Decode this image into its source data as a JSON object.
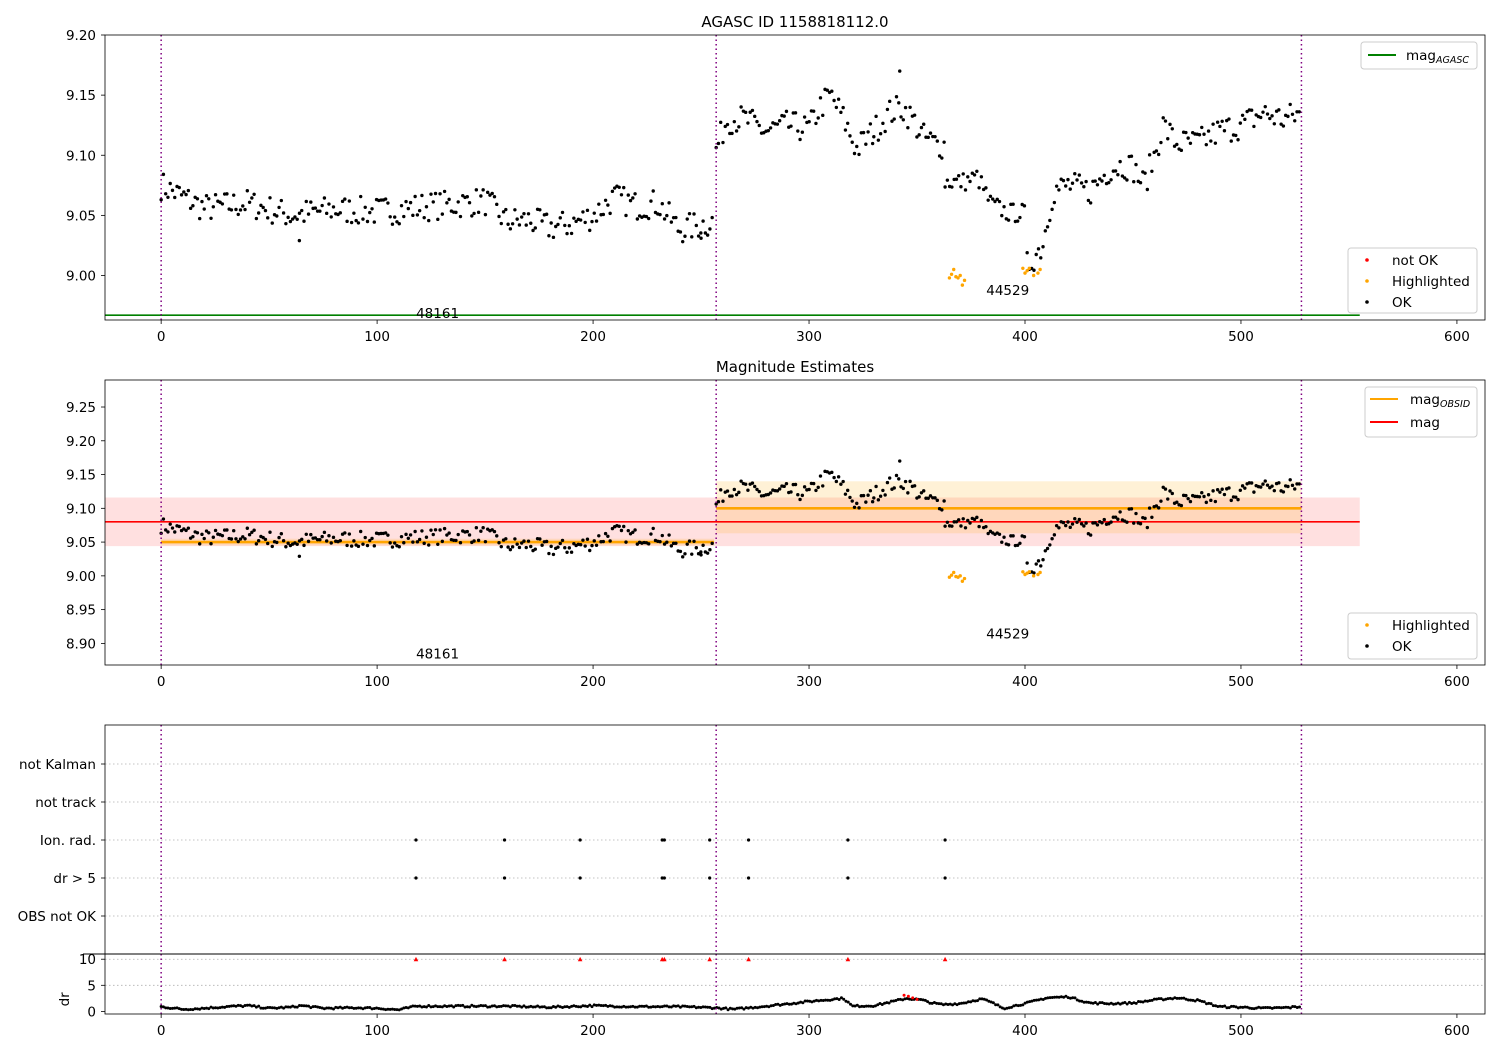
{
  "chart_data": [
    {
      "type": "scatter",
      "title": "AGASC ID 1158818112.0",
      "xlim": [
        -26,
        613
      ],
      "ylim": [
        8.963,
        9.2
      ],
      "x_ticks": [
        "0",
        "100",
        "200",
        "300",
        "400",
        "500",
        "600"
      ],
      "y_ticks": [
        "9.00",
        "9.05",
        "9.10",
        "9.15",
        "9.20"
      ],
      "obs_boundaries": [
        0,
        257,
        528
      ],
      "obs_labels": [
        {
          "text": "48161",
          "x": 128,
          "y": 8.969
        },
        {
          "text": "44529",
          "x": 392,
          "y": 8.988
        }
      ],
      "mag_agasc": 8.967,
      "mag_agasc_xrange": [
        -26,
        555
      ],
      "legend": {
        "upper": [
          {
            "label": "mag",
            "sub": "AGASC",
            "color": "#008000"
          }
        ],
        "lower": [
          {
            "label": "not OK",
            "color": "#ff0000"
          },
          {
            "label": "Highlighted",
            "color": "#ffa500"
          },
          {
            "label": "OK",
            "color": "#000000"
          }
        ]
      },
      "highlighted_points": [
        [
          365,
          8.998
        ],
        [
          366,
          9.001
        ],
        [
          367,
          9.005
        ],
        [
          368,
          8.999
        ],
        [
          369,
          8.998
        ],
        [
          370,
          9.0
        ],
        [
          371,
          8.992
        ],
        [
          372,
          8.996
        ],
        [
          399,
          9.006
        ],
        [
          400,
          9.002
        ],
        [
          401,
          9.004
        ],
        [
          402,
          9.006
        ],
        [
          404,
          9.0
        ],
        [
          406,
          9.002
        ],
        [
          407,
          9.005
        ]
      ],
      "ok_segments": [
        {
          "x0": 0,
          "x1": 256,
          "keys": [
            [
              0,
              9.075
            ],
            [
              20,
              9.056
            ],
            [
              40,
              9.06
            ],
            [
              60,
              9.05
            ],
            [
              80,
              9.055
            ],
            [
              100,
              9.053
            ],
            [
              120,
              9.057
            ],
            [
              140,
              9.06
            ],
            [
              150,
              9.062
            ],
            [
              160,
              9.045
            ],
            [
              170,
              9.046
            ],
            [
              180,
              9.04
            ],
            [
              190,
              9.043
            ],
            [
              200,
              9.05
            ],
            [
              210,
              9.065
            ],
            [
              220,
              9.058
            ],
            [
              230,
              9.06
            ],
            [
              240,
              9.038
            ],
            [
              256,
              9.045
            ]
          ],
          "jitter": 0.012
        },
        {
          "x0": 257,
          "x1": 330,
          "keys": [
            [
              257,
              9.105
            ],
            [
              262,
              9.13
            ],
            [
              270,
              9.13
            ],
            [
              280,
              9.12
            ],
            [
              290,
              9.125
            ],
            [
              300,
              9.122
            ],
            [
              305,
              9.14
            ],
            [
              310,
              9.15
            ],
            [
              316,
              9.13
            ],
            [
              322,
              9.105
            ],
            [
              330,
              9.12
            ]
          ],
          "jitter": 0.012
        },
        {
          "x0": 330,
          "x1": 363,
          "keys": [
            [
              330,
              9.12
            ],
            [
              337,
              9.135
            ],
            [
              343,
              9.14
            ],
            [
              348,
              9.13
            ],
            [
              353,
              9.115
            ],
            [
              358,
              9.11
            ],
            [
              363,
              9.108
            ]
          ],
          "jitter": 0.012
        },
        {
          "x0": 363,
          "x1": 400,
          "keys": [
            [
              363,
              9.078
            ],
            [
              372,
              9.078
            ],
            [
              378,
              9.082
            ],
            [
              384,
              9.06
            ],
            [
              392,
              9.052
            ],
            [
              400,
              9.052
            ]
          ],
          "jitter": 0.008
        },
        {
          "x0": 401,
          "x1": 528,
          "keys": [
            [
              401,
              9.008
            ],
            [
              408,
              9.025
            ],
            [
              413,
              9.07
            ],
            [
              420,
              9.075
            ],
            [
              430,
              9.07
            ],
            [
              440,
              9.09
            ],
            [
              446,
              9.092
            ],
            [
              450,
              9.09
            ],
            [
              455,
              9.075
            ],
            [
              460,
              9.1
            ],
            [
              464,
              9.125
            ],
            [
              470,
              9.11
            ],
            [
              480,
              9.11
            ],
            [
              490,
              9.12
            ],
            [
              500,
              9.125
            ],
            [
              510,
              9.135
            ],
            [
              520,
              9.13
            ],
            [
              528,
              9.135
            ]
          ],
          "jitter": 0.012
        }
      ],
      "extra_points": [
        [
          342,
          9.17
        ],
        [
          64,
          9.029
        ],
        [
          250,
          9.031
        ]
      ]
    },
    {
      "type": "scatter",
      "title": "Magnitude Estimates",
      "xlim": [
        -26,
        613
      ],
      "ylim": [
        8.868,
        9.29
      ],
      "x_ticks": [
        "0",
        "100",
        "200",
        "300",
        "400",
        "500",
        "600"
      ],
      "y_ticks": [
        "8.90",
        "8.95",
        "9.00",
        "9.05",
        "9.10",
        "9.15",
        "9.20",
        "9.25"
      ],
      "obs_boundaries": [
        0,
        257,
        528
      ],
      "obs_labels": [
        {
          "text": "48161",
          "x": 128,
          "y": 8.885
        },
        {
          "text": "44529",
          "x": 392,
          "y": 8.915
        }
      ],
      "mag": {
        "value": 9.08,
        "low": 9.044,
        "high": 9.116,
        "xrange": [
          -26,
          555
        ]
      },
      "mag_obsid": [
        {
          "x0": 0,
          "x1": 256,
          "value": 9.05,
          "low": 9.045,
          "high": 9.055
        },
        {
          "x0": 257,
          "x1": 528,
          "value": 9.1,
          "low": 9.063,
          "high": 9.14
        }
      ],
      "legend": {
        "upper": [
          {
            "label": "mag",
            "sub": "OBSID",
            "color": "#ffa500"
          },
          {
            "label": "mag",
            "sub": "",
            "color": "#ff0000"
          }
        ],
        "lower": [
          {
            "label": "Highlighted",
            "color": "#ffa500"
          },
          {
            "label": "OK",
            "color": "#000000"
          }
        ]
      }
    },
    {
      "type": "scatter",
      "title": "",
      "xlim": [
        -26,
        613
      ],
      "x_ticks": [
        "0",
        "100",
        "200",
        "300",
        "400",
        "500",
        "600"
      ],
      "flag_rows": [
        "not Kalman",
        "not track",
        "Ion. rad.",
        "dr > 5",
        "OBS not OK"
      ],
      "flag_points": {
        "Ion. rad.": [
          118,
          159,
          194,
          232,
          233,
          254,
          272,
          318,
          363
        ],
        "dr > 5": [
          118,
          159,
          194,
          232,
          233,
          254,
          272,
          318,
          363
        ]
      },
      "dr_axis": {
        "ylabel": "dr",
        "ylim": [
          -0.5,
          11
        ],
        "ticks": [
          "0",
          "5",
          "10"
        ]
      },
      "dr_capped_points": [
        118,
        159,
        194,
        232,
        233,
        254,
        272,
        318,
        363
      ],
      "dr_red_segment": [
        [
          344,
          3.1
        ],
        [
          346,
          2.9
        ],
        [
          348,
          2.6
        ],
        [
          350,
          2.3
        ]
      ],
      "dr_curve": [
        [
          0,
          0.9
        ],
        [
          10,
          0.4
        ],
        [
          20,
          0.6
        ],
        [
          30,
          0.9
        ],
        [
          40,
          1.1
        ],
        [
          50,
          0.6
        ],
        [
          60,
          0.8
        ],
        [
          65,
          1.1
        ],
        [
          75,
          0.6
        ],
        [
          90,
          0.7
        ],
        [
          100,
          0.6
        ],
        [
          110,
          0.3
        ],
        [
          118,
          1.0
        ],
        [
          140,
          1.0
        ],
        [
          160,
          1.0
        ],
        [
          180,
          0.8
        ],
        [
          200,
          1.1
        ],
        [
          220,
          0.9
        ],
        [
          240,
          0.9
        ],
        [
          256,
          0.7
        ],
        [
          265,
          0.4
        ],
        [
          280,
          1.0
        ],
        [
          300,
          1.9
        ],
        [
          310,
          2.3
        ],
        [
          316,
          2.5
        ],
        [
          320,
          1.0
        ],
        [
          330,
          1.1
        ],
        [
          340,
          2.0
        ],
        [
          345,
          2.5
        ],
        [
          352,
          2.2
        ],
        [
          357,
          1.6
        ],
        [
          362,
          1.3
        ],
        [
          370,
          1.5
        ],
        [
          380,
          2.4
        ],
        [
          385,
          1.6
        ],
        [
          390,
          0.6
        ],
        [
          400,
          1.5
        ],
        [
          410,
          2.6
        ],
        [
          420,
          2.8
        ],
        [
          430,
          1.6
        ],
        [
          440,
          1.5
        ],
        [
          450,
          1.6
        ],
        [
          460,
          2.2
        ],
        [
          470,
          2.6
        ],
        [
          480,
          2.1
        ],
        [
          490,
          0.9
        ],
        [
          500,
          0.8
        ],
        [
          510,
          0.6
        ],
        [
          520,
          0.7
        ],
        [
          528,
          0.9
        ]
      ]
    }
  ]
}
